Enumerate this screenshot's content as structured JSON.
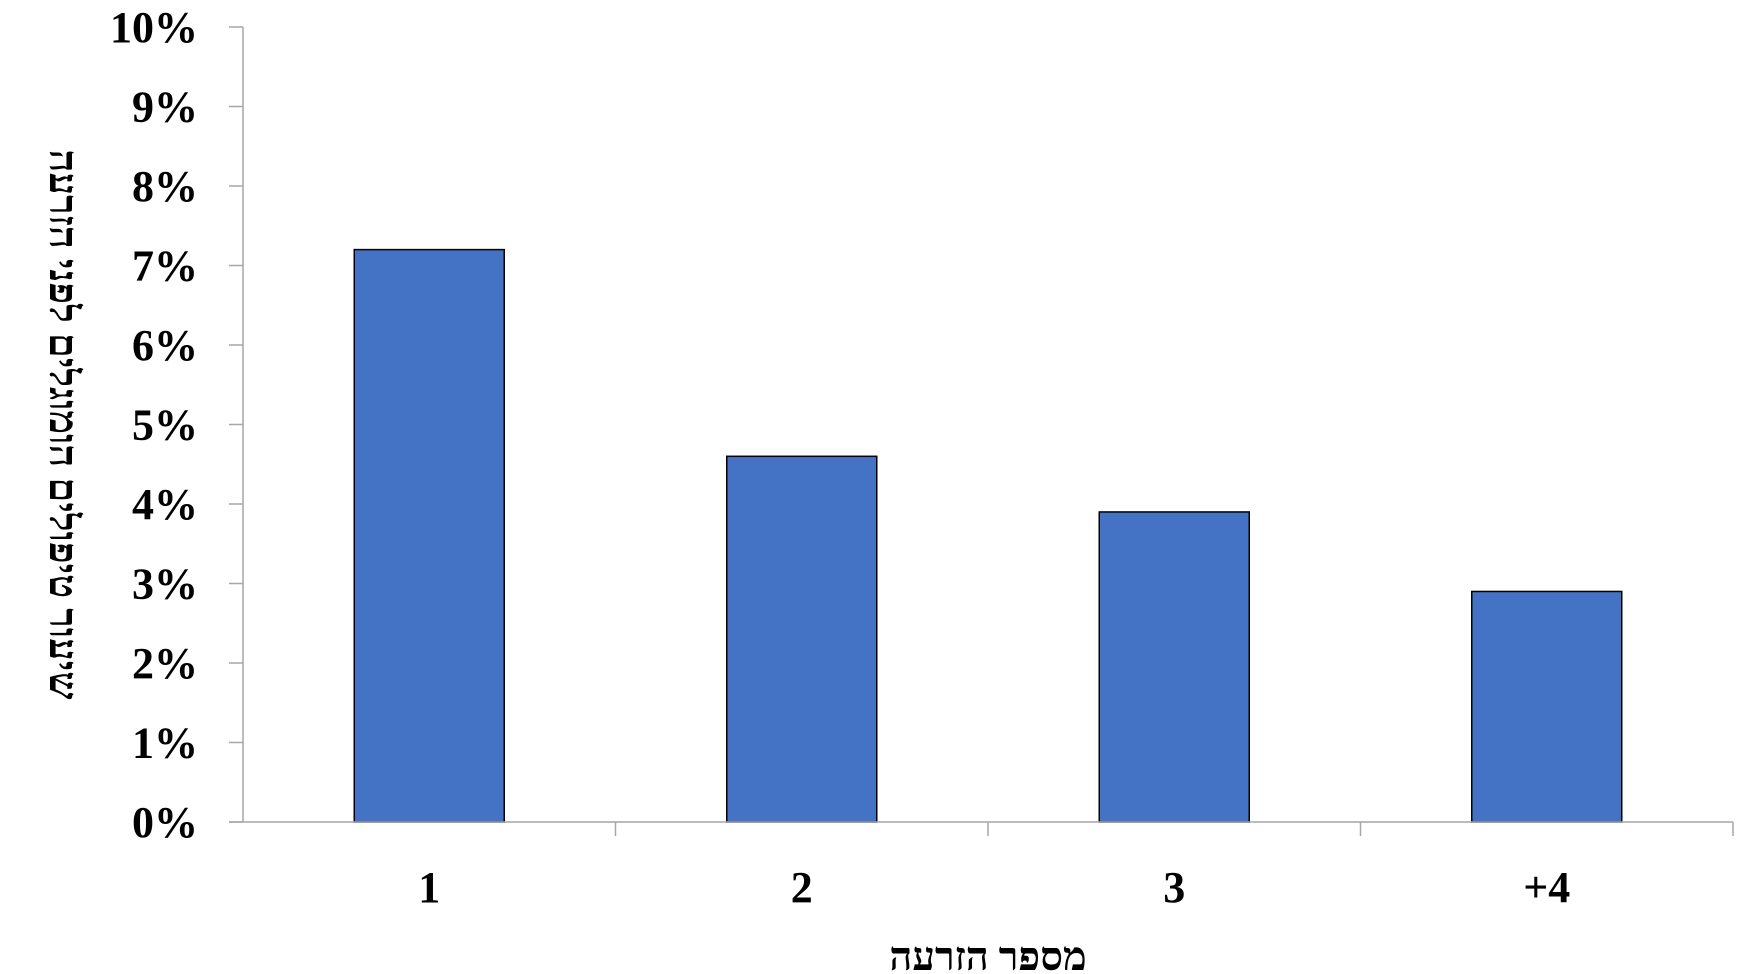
{
  "chart_data": {
    "type": "bar",
    "categories": [
      "1",
      "2",
      "3",
      "+4"
    ],
    "values": [
      7.2,
      4.6,
      3.9,
      2.9
    ],
    "value_unit": "%",
    "title": "",
    "xlabel": "מספר הזרעה",
    "ylabel": "שיעור טיפולים הומוגלים לפני הזרעה",
    "ylim": [
      0,
      10
    ],
    "yticks": [
      "0%",
      "1%",
      "2%",
      "3%",
      "4%",
      "5%",
      "6%",
      "7%",
      "8%",
      "9%",
      "10%"
    ],
    "grid": false,
    "legend": "none",
    "bar_color": "#4472C4",
    "bar_edge_color": "#000000",
    "axis_color": "#A6A6A6"
  }
}
